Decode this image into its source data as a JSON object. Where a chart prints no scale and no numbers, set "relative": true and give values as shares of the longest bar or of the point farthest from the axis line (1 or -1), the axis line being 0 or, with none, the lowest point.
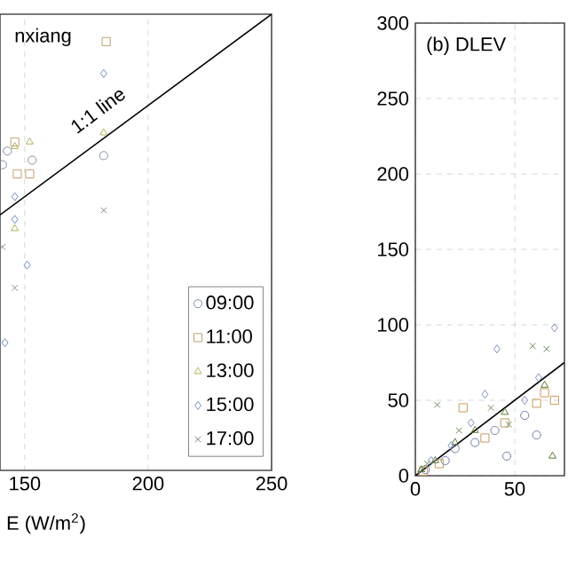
{
  "chart_data": [
    {
      "type": "scatter",
      "title": "nxiang",
      "xlabel": "E (W/m$^{2}$)",
      "xlim": [
        140,
        250
      ],
      "xticks": [
        150,
        200,
        250
      ],
      "relative": true,
      "grid": "x",
      "legend": "bottom right",
      "annotations": [
        "1:1 line"
      ],
      "series": [
        {
          "name": "09:00",
          "color": "#7f8fa6",
          "marker": "circle",
          "x": [
            182,
            143,
            153,
            141
          ],
          "values": [
            0.69,
            0.7,
            0.68,
            0.67
          ]
        },
        {
          "name": "11:00",
          "color": "#c4a070",
          "marker": "square",
          "x": [
            183,
            146,
            152,
            147
          ],
          "values": [
            0.94,
            0.72,
            0.65,
            0.65
          ]
        },
        {
          "name": "13:00",
          "color": "#b0b060",
          "marker": "triangle",
          "x": [
            182,
            152,
            146,
            146
          ],
          "values": [
            0.74,
            0.72,
            0.71,
            0.53
          ]
        },
        {
          "name": "15:00",
          "color": "#6f8fc0",
          "marker": "diamond",
          "x": [
            182,
            146,
            146,
            151,
            142
          ],
          "values": [
            0.87,
            0.6,
            0.55,
            0.45,
            0.28
          ]
        },
        {
          "name": "17:00",
          "color": "#8a8a8a",
          "marker": "cross",
          "x": [
            182,
            141,
            146
          ],
          "values": [
            0.57,
            0.49,
            0.4
          ]
        },
        {
          "type": "line",
          "color": "#000000",
          "x": [
            140,
            250
          ],
          "values": [
            0.56,
            1
          ]
        }
      ]
    },
    {
      "type": "scatter",
      "title": "(b) DLEV",
      "xlim": [
        0,
        75
      ],
      "ylim": [
        0,
        300
      ],
      "xticks": [
        0,
        50
      ],
      "yticks": [
        0,
        50,
        100,
        150,
        200,
        250,
        300
      ],
      "grid": true,
      "series": [
        {
          "color": "#6f7fa8",
          "marker": "circle",
          "x": [
            5,
            15,
            30,
            46,
            61,
            40,
            55,
            20
          ],
          "values": [
            4,
            10,
            22,
            13,
            27,
            30,
            40,
            18
          ]
        },
        {
          "color": "#c89a5a",
          "marker": "square",
          "x": [
            4,
            12,
            24,
            35,
            45,
            61,
            65,
            70
          ],
          "values": [
            3,
            8,
            45,
            25,
            35,
            48,
            55,
            50
          ]
        },
        {
          "color": "#5a7a3a",
          "marker": "triangle",
          "x": [
            3,
            10,
            20,
            30,
            45,
            69,
            65
          ],
          "values": [
            4,
            10,
            22,
            30,
            42,
            13,
            60
          ]
        },
        {
          "color": "#7f8fc0",
          "marker": "diamond",
          "x": [
            8,
            18,
            28,
            35,
            41,
            70,
            55,
            62
          ],
          "values": [
            10,
            20,
            35,
            54,
            84,
            98,
            50,
            65
          ]
        },
        {
          "color": "#6a8a5a",
          "marker": "cross",
          "x": [
            6,
            11,
            22,
            38,
            59,
            66,
            47
          ],
          "values": [
            8,
            47,
            30,
            45,
            86,
            84,
            34
          ]
        },
        {
          "type": "line",
          "color": "#000000",
          "x": [
            0,
            75
          ],
          "values": [
            0,
            75
          ]
        }
      ]
    }
  ]
}
